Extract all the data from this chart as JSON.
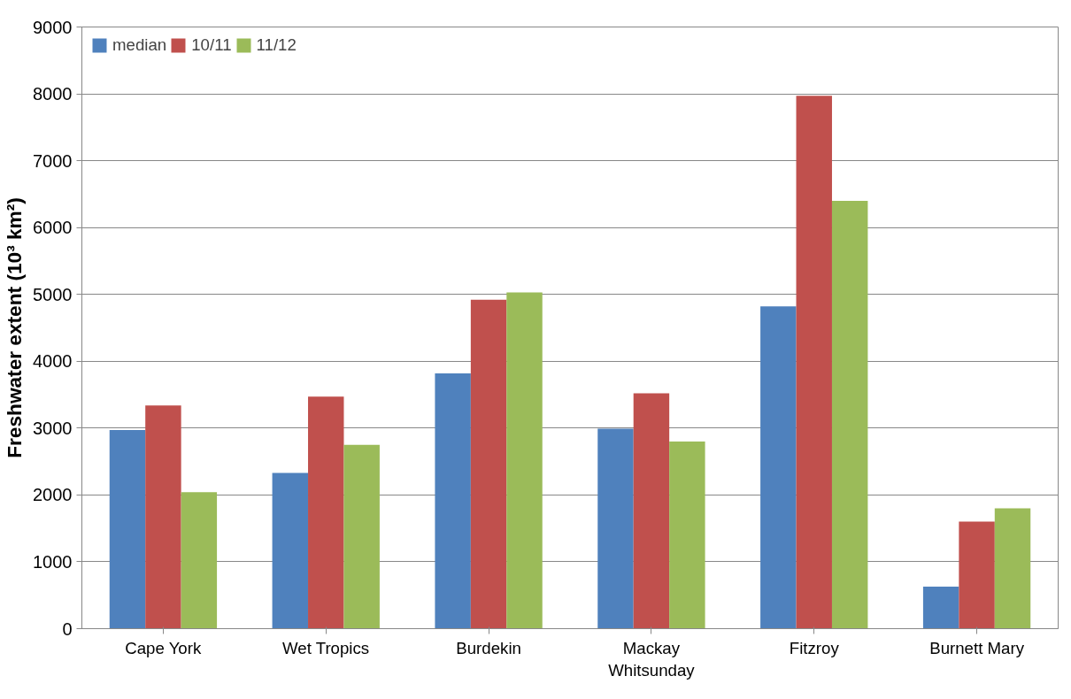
{
  "chart_data": {
    "type": "bar",
    "ylabel": "Freshwater extent (10³ km²)",
    "categories": [
      "Cape York",
      "Wet Tropics",
      "Burdekin",
      "Mackay\nWhitsunday",
      "Fitzroy",
      "Burnett Mary"
    ],
    "series": [
      {
        "name": "median",
        "color": "#4f81bd",
        "values": [
          2970,
          2330,
          3820,
          2990,
          4820,
          630
        ]
      },
      {
        "name": "10/11",
        "color": "#c0504d",
        "values": [
          3340,
          3470,
          4920,
          3520,
          7970,
          1600
        ]
      },
      {
        "name": "11/12",
        "color": "#9bbb59",
        "values": [
          2040,
          2750,
          5030,
          2800,
          6400,
          1800
        ]
      }
    ],
    "ylim": [
      0,
      9000
    ],
    "yticks": [
      0,
      1000,
      2000,
      3000,
      4000,
      5000,
      6000,
      7000,
      8000,
      9000
    ],
    "grid": "y",
    "legend": "top left"
  }
}
